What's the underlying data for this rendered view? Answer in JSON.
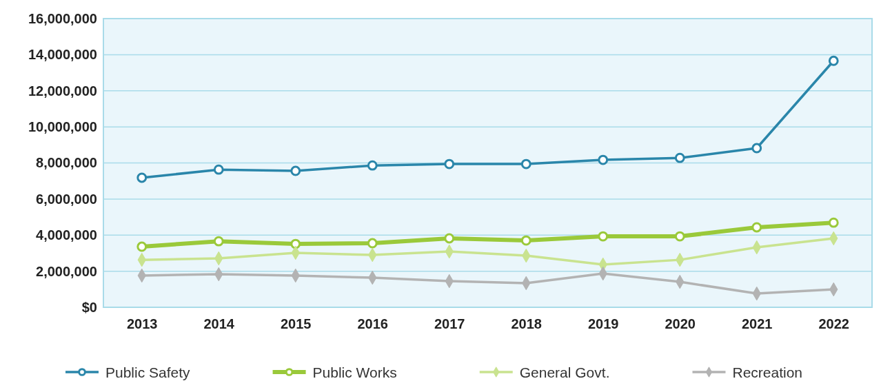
{
  "chart_data": {
    "type": "line",
    "categories": [
      "2013",
      "2014",
      "2015",
      "2016",
      "2017",
      "2018",
      "2019",
      "2020",
      "2021",
      "2022"
    ],
    "series": [
      {
        "name": "Public Safety",
        "color": "#2a86aa",
        "marker": "circle",
        "values": [
          7180000,
          7630000,
          7560000,
          7860000,
          7940000,
          7940000,
          8170000,
          8280000,
          8820000,
          13660000
        ]
      },
      {
        "name": "Public Works",
        "color": "#9ac93a",
        "marker": "circle",
        "values": [
          3360000,
          3660000,
          3510000,
          3550000,
          3820000,
          3700000,
          3930000,
          3930000,
          4430000,
          4690000
        ]
      },
      {
        "name": "General Govt.",
        "color": "#c9e38f",
        "marker": "diamond",
        "values": [
          2630000,
          2710000,
          3020000,
          2900000,
          3090000,
          2860000,
          2370000,
          2630000,
          3320000,
          3820000
        ]
      },
      {
        "name": "Recreation",
        "color": "#b3b3b3",
        "marker": "diamond",
        "values": [
          1760000,
          1830000,
          1760000,
          1640000,
          1450000,
          1340000,
          1870000,
          1410000,
          760000,
          990000
        ]
      }
    ],
    "ylim": [
      0,
      16000000
    ],
    "yticks": [
      {
        "value": 0,
        "label": "$0"
      },
      {
        "value": 2000000,
        "label": "2,000,000"
      },
      {
        "value": 4000000,
        "label": "4,000,000"
      },
      {
        "value": 6000000,
        "label": "6,000,000"
      },
      {
        "value": 8000000,
        "label": "8,000,000"
      },
      {
        "value": 10000000,
        "label": "10,000,000"
      },
      {
        "value": 12000000,
        "label": "12,000,000"
      },
      {
        "value": 14000000,
        "label": "14,000,000"
      },
      {
        "value": 16000000,
        "label": "16,000,000"
      }
    ],
    "grid": "y",
    "legend": "bottom"
  }
}
